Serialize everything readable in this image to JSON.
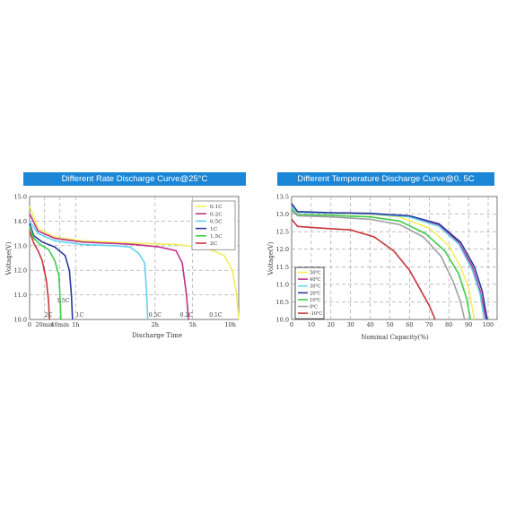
{
  "chart_data": [
    {
      "type": "line",
      "title": "Different Rate Discharge Curve@25°C",
      "xlabel": "Discharge Time",
      "ylabel": "Voltage(V)",
      "ylim": [
        10.0,
        15.0
      ],
      "y_ticks": [
        "10.0",
        "11.0",
        "12.0",
        "13.0",
        "14.0",
        "15.0"
      ],
      "x_ticks": [
        "0",
        "20min",
        "40min",
        "1h",
        "2h",
        "5h",
        "10h"
      ],
      "grid": true,
      "legend_position": "top-right",
      "curve_labels": [
        "2C",
        "1.5C",
        "1C",
        "0.5C",
        "0.2C",
        "0.1C"
      ],
      "series": [
        {
          "name": "0.1C",
          "color": "#f2ef5a",
          "points": [
            [
              0,
              14.6
            ],
            [
              0.04,
              13.7
            ],
            [
              0.12,
              13.35
            ],
            [
              0.25,
              13.2
            ],
            [
              0.5,
              13.1
            ],
            [
              0.7,
              13.05
            ],
            [
              0.85,
              12.9
            ],
            [
              0.93,
              12.6
            ],
            [
              0.97,
              12.0
            ],
            [
              0.99,
              11.0
            ],
            [
              1.0,
              10.0
            ]
          ]
        },
        {
          "name": "0.2C",
          "color": "#c0318a",
          "points": [
            [
              0,
              14.3
            ],
            [
              0.04,
              13.6
            ],
            [
              0.12,
              13.3
            ],
            [
              0.25,
              13.15
            ],
            [
              0.5,
              13.05
            ],
            [
              0.62,
              12.95
            ],
            [
              0.7,
              12.8
            ],
            [
              0.73,
              12.3
            ],
            [
              0.75,
              11.0
            ],
            [
              0.76,
              10.0
            ]
          ]
        },
        {
          "name": "0.5C",
          "color": "#5ed3f0",
          "points": [
            [
              0,
              14.0
            ],
            [
              0.04,
              13.5
            ],
            [
              0.12,
              13.2
            ],
            [
              0.25,
              13.05
            ],
            [
              0.4,
              13.0
            ],
            [
              0.48,
              12.95
            ],
            [
              0.52,
              12.7
            ],
            [
              0.55,
              12.3
            ],
            [
              0.56,
              11.0
            ],
            [
              0.565,
              10.0
            ]
          ]
        },
        {
          "name": "1C",
          "color": "#2a3a9e",
          "points": [
            [
              0,
              13.9
            ],
            [
              0.02,
              13.4
            ],
            [
              0.06,
              13.15
            ],
            [
              0.12,
              12.95
            ],
            [
              0.17,
              12.6
            ],
            [
              0.19,
              12.0
            ],
            [
              0.2,
              11.0
            ],
            [
              0.205,
              10.0
            ]
          ]
        },
        {
          "name": "1.5C",
          "color": "#3dcc4b",
          "points": [
            [
              0,
              13.8
            ],
            [
              0.02,
              13.3
            ],
            [
              0.05,
              13.05
            ],
            [
              0.09,
              12.85
            ],
            [
              0.12,
              12.4
            ],
            [
              0.14,
              11.8
            ],
            [
              0.145,
              11.0
            ],
            [
              0.15,
              10.0
            ]
          ]
        },
        {
          "name": "2C",
          "color": "#c8363a",
          "points": [
            [
              0,
              13.6
            ],
            [
              0.02,
              13.1
            ],
            [
              0.04,
              12.8
            ],
            [
              0.06,
              12.4
            ],
            [
              0.08,
              11.6
            ],
            [
              0.09,
              10.8
            ],
            [
              0.095,
              10.0
            ]
          ]
        }
      ]
    },
    {
      "type": "line",
      "title": "Different Temperature Discharge Curve@0. 5C",
      "xlabel": "Nominal Capacity(%)",
      "ylabel": "Voltage(V)",
      "xlim": [
        0,
        100
      ],
      "ylim": [
        10.0,
        13.5
      ],
      "y_ticks": [
        "10.0",
        "10.5",
        "11.0",
        "11.5",
        "12.0",
        "12.5",
        "13.0",
        "13.5"
      ],
      "x_ticks": [
        "0",
        "10",
        "20",
        "30",
        "40",
        "50",
        "60",
        "70",
        "80",
        "90",
        "100"
      ],
      "grid": true,
      "legend_position": "bottom-left",
      "series": [
        {
          "name": "50℃",
          "color": "#f2ef5a",
          "points": [
            [
              0,
              13.25
            ],
            [
              3,
              13.05
            ],
            [
              20,
              13.02
            ],
            [
              40,
              13.0
            ],
            [
              55,
              12.92
            ],
            [
              70,
              12.6
            ],
            [
              80,
              12.1
            ],
            [
              86,
              11.5
            ],
            [
              90,
              10.9
            ],
            [
              93,
              10.0
            ]
          ]
        },
        {
          "name": "40℃",
          "color": "#c0318a",
          "points": [
            [
              0,
              13.25
            ],
            [
              3,
              13.05
            ],
            [
              20,
              13.03
            ],
            [
              40,
              13.01
            ],
            [
              60,
              12.93
            ],
            [
              75,
              12.7
            ],
            [
              85,
              12.2
            ],
            [
              92,
              11.5
            ],
            [
              96,
              10.8
            ],
            [
              99,
              10.0
            ]
          ]
        },
        {
          "name": "30℃",
          "color": "#5ed3f0",
          "points": [
            [
              0,
              13.22
            ],
            [
              3,
              13.05
            ],
            [
              20,
              13.03
            ],
            [
              40,
              13.01
            ],
            [
              60,
              12.92
            ],
            [
              75,
              12.65
            ],
            [
              85,
              12.15
            ],
            [
              92,
              11.4
            ],
            [
              96,
              10.7
            ],
            [
              98,
              10.0
            ]
          ]
        },
        {
          "name": "20℃",
          "color": "#2a3a9e",
          "points": [
            [
              0,
              13.3
            ],
            [
              3,
              13.07
            ],
            [
              20,
              13.04
            ],
            [
              40,
              13.02
            ],
            [
              60,
              12.95
            ],
            [
              75,
              12.72
            ],
            [
              86,
              12.2
            ],
            [
              93,
              11.5
            ],
            [
              97,
              10.8
            ],
            [
              99.5,
              10.0
            ]
          ]
        },
        {
          "name": "10℃",
          "color": "#3dcc4b",
          "points": [
            [
              0,
              13.15
            ],
            [
              3,
              12.98
            ],
            [
              20,
              12.96
            ],
            [
              40,
              12.92
            ],
            [
              55,
              12.8
            ],
            [
              68,
              12.45
            ],
            [
              78,
              11.95
            ],
            [
              85,
              11.3
            ],
            [
              89,
              10.6
            ],
            [
              91,
              10.0
            ]
          ]
        },
        {
          "name": "0℃",
          "color": "#a0a0a0",
          "points": [
            [
              0,
              13.1
            ],
            [
              3,
              12.95
            ],
            [
              20,
              12.92
            ],
            [
              40,
              12.85
            ],
            [
              55,
              12.7
            ],
            [
              67,
              12.35
            ],
            [
              76,
              11.8
            ],
            [
              82,
              11.1
            ],
            [
              86,
              10.5
            ],
            [
              88,
              10.0
            ]
          ]
        },
        {
          "name": "-10℃",
          "color": "#c8363a",
          "points": [
            [
              0,
              12.85
            ],
            [
              3,
              12.65
            ],
            [
              15,
              12.6
            ],
            [
              30,
              12.55
            ],
            [
              42,
              12.35
            ],
            [
              52,
              11.95
            ],
            [
              60,
              11.4
            ],
            [
              66,
              10.8
            ],
            [
              70,
              10.4
            ],
            [
              73,
              10.0
            ]
          ]
        }
      ]
    }
  ]
}
